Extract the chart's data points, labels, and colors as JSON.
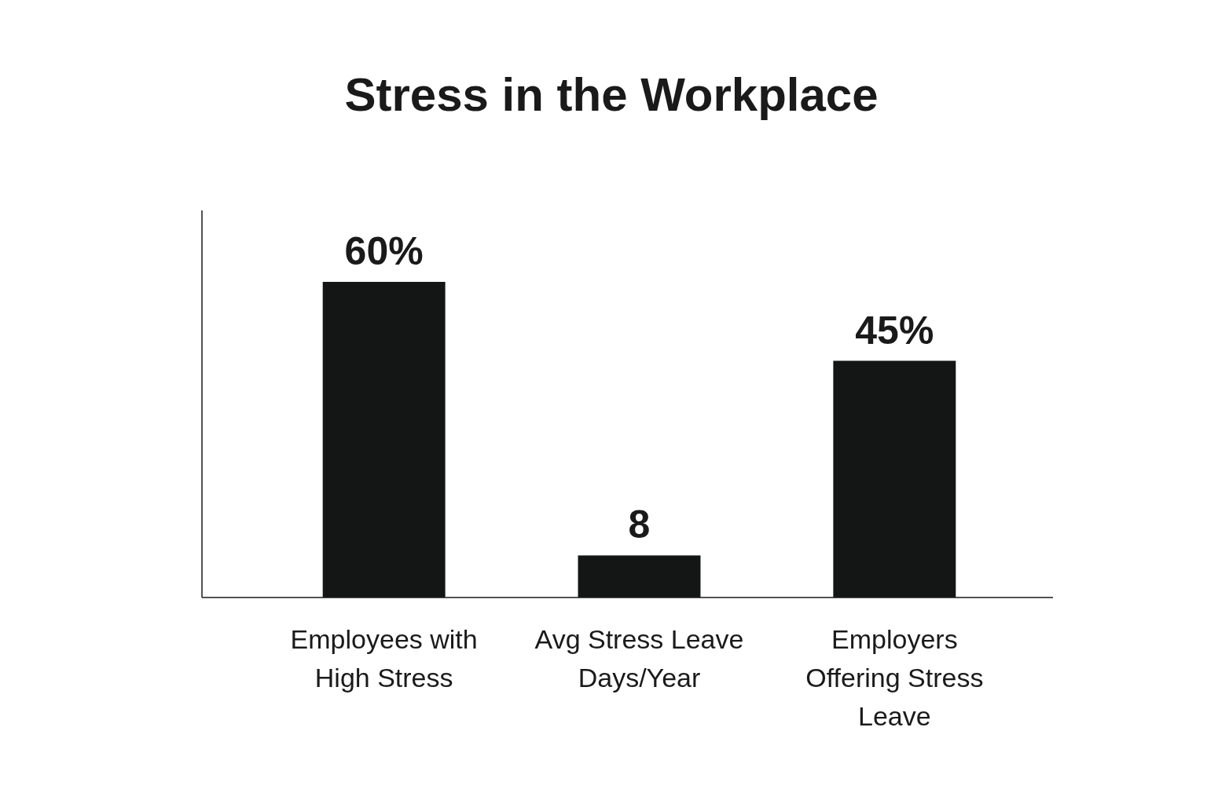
{
  "chart_data": {
    "type": "bar",
    "title": "Stress in the Workplace",
    "categories": [
      "Employees with High Stress",
      "Avg Stress Leave Days/Year",
      "Employers Offering Stress Leave"
    ],
    "values": [
      60,
      8,
      45
    ],
    "value_labels": [
      "60%",
      "8",
      "45%"
    ],
    "color": "#141615"
  }
}
